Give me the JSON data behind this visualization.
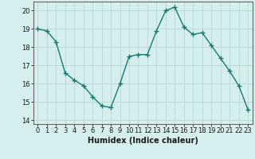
{
  "x": [
    0,
    1,
    2,
    3,
    4,
    5,
    6,
    7,
    8,
    9,
    10,
    11,
    12,
    13,
    14,
    15,
    16,
    17,
    18,
    19,
    20,
    21,
    22,
    23
  ],
  "y": [
    19.0,
    18.9,
    18.3,
    16.6,
    16.2,
    15.9,
    15.3,
    14.8,
    14.7,
    16.0,
    17.5,
    17.6,
    17.6,
    18.9,
    20.0,
    20.2,
    19.1,
    18.7,
    18.8,
    18.1,
    17.4,
    16.7,
    15.9,
    14.6
  ],
  "line_color": "#1a7a6e",
  "marker_color": "#1a7a6e",
  "bg_color": "#d4efed",
  "grid_color": "#b8d8d5",
  "xlabel": "Humidex (Indice chaleur)",
  "ylim": [
    13.8,
    20.5
  ],
  "yticks": [
    14,
    15,
    16,
    17,
    18,
    19,
    20
  ],
  "xlim": [
    -0.5,
    23.5
  ],
  "axis_color": "#666666",
  "font_color": "#1a1a1a",
  "xlabel_fontsize": 7,
  "tick_fontsize": 6,
  "linewidth": 1.0,
  "markersize": 2.5
}
